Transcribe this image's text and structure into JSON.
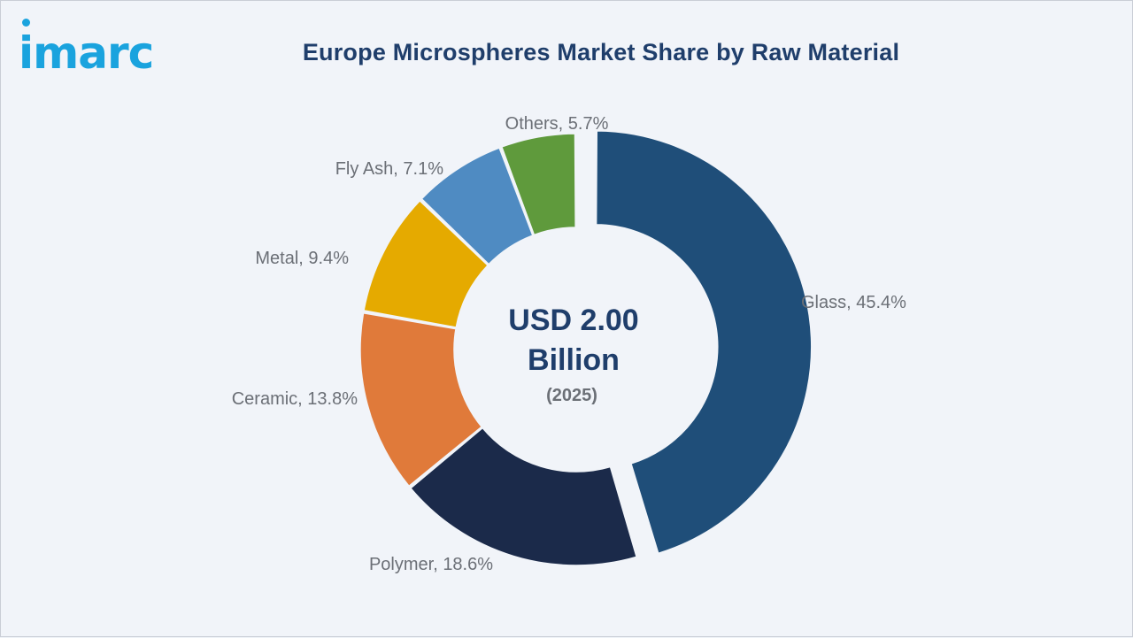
{
  "brand": {
    "logo_text": "imarc",
    "color": "#1aa3de"
  },
  "chart_data": {
    "type": "pie",
    "title": "Europe Microspheres Market Share by Raw Material",
    "center_value_line1": "USD 2.00",
    "center_value_line2": "Billion",
    "center_year": "(2025)",
    "slices": [
      {
        "label": "Glass",
        "value": 45.4,
        "display": "Glass, 45.4%",
        "color": "#1f4e79",
        "exploded": true
      },
      {
        "label": "Polymer",
        "value": 18.6,
        "display": "Polymer, 18.6%",
        "color": "#1b2a4a",
        "exploded": false
      },
      {
        "label": "Ceramic",
        "value": 13.8,
        "display": "Ceramic, 13.8%",
        "color": "#e07a3a",
        "exploded": false
      },
      {
        "label": "Metal",
        "value": 9.4,
        "display": "Metal, 9.4%",
        "color": "#e5aa00",
        "exploded": false
      },
      {
        "label": "Fly Ash",
        "value": 7.1,
        "display": "Fly Ash, 7.1%",
        "color": "#4f8bc2",
        "exploded": false
      },
      {
        "label": "Others",
        "value": 5.7,
        "display": "Others, 5.7%",
        "color": "#5f9a3c",
        "exploded": false
      }
    ]
  }
}
